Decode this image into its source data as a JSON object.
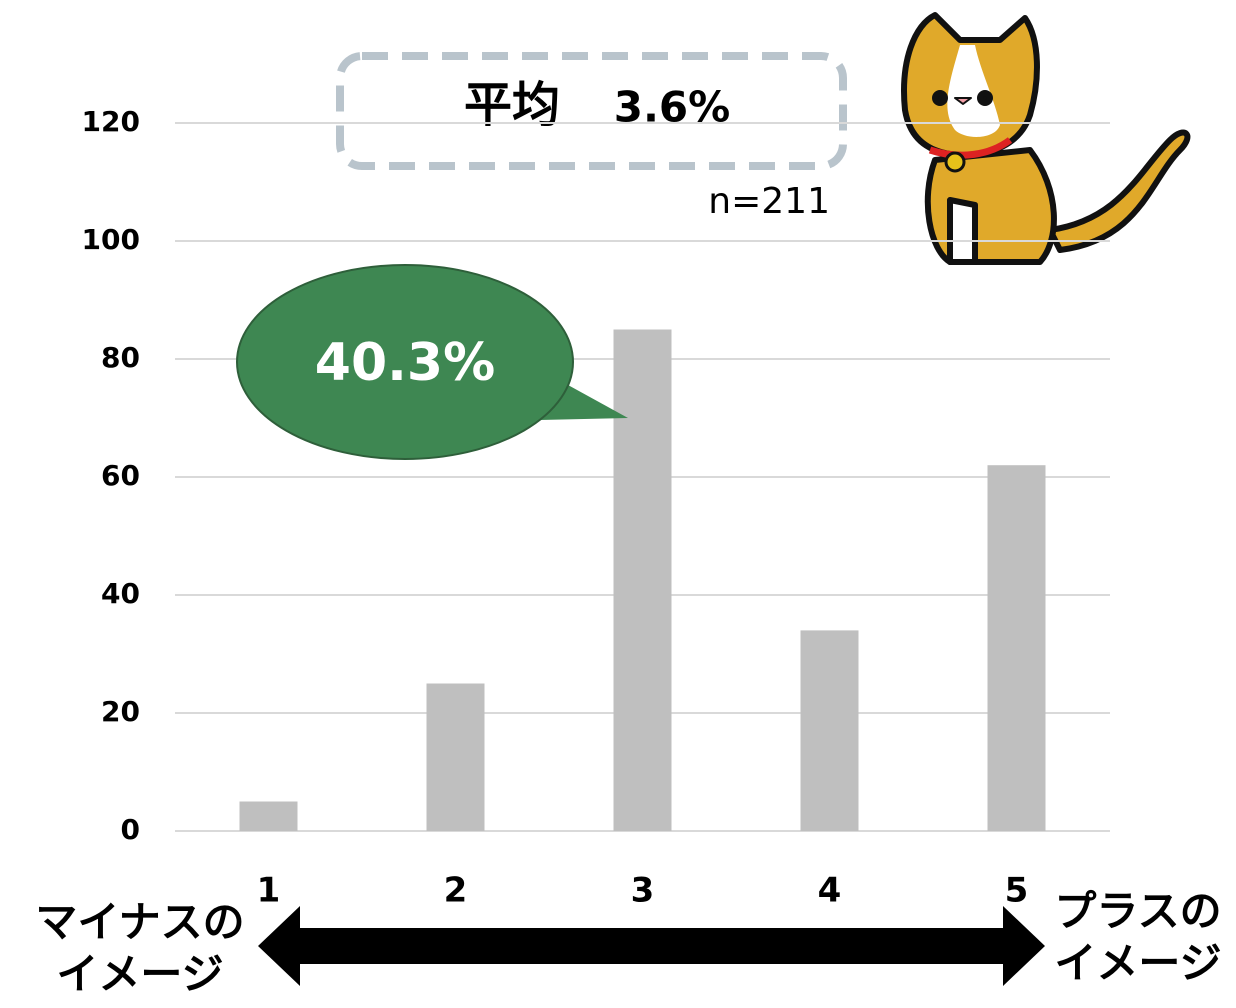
{
  "chart_data": {
    "type": "bar",
    "categories": [
      "1",
      "2",
      "3",
      "4",
      "5"
    ],
    "values": [
      5,
      25,
      85,
      34,
      62
    ],
    "color": "#bfbfbf",
    "ylim": [
      0,
      120
    ],
    "yticks": [
      0,
      20,
      40,
      60,
      80,
      100,
      120
    ],
    "grid": true,
    "annotations": {
      "average_label": "平均",
      "average_value": "3.6%",
      "sample_size": "n=211",
      "callout": "40.3%",
      "callout_color": "#3e8752",
      "left_label": [
        "マイナスの",
        "イメージ"
      ],
      "right_label": [
        "プラスの",
        "イメージ"
      ]
    }
  }
}
